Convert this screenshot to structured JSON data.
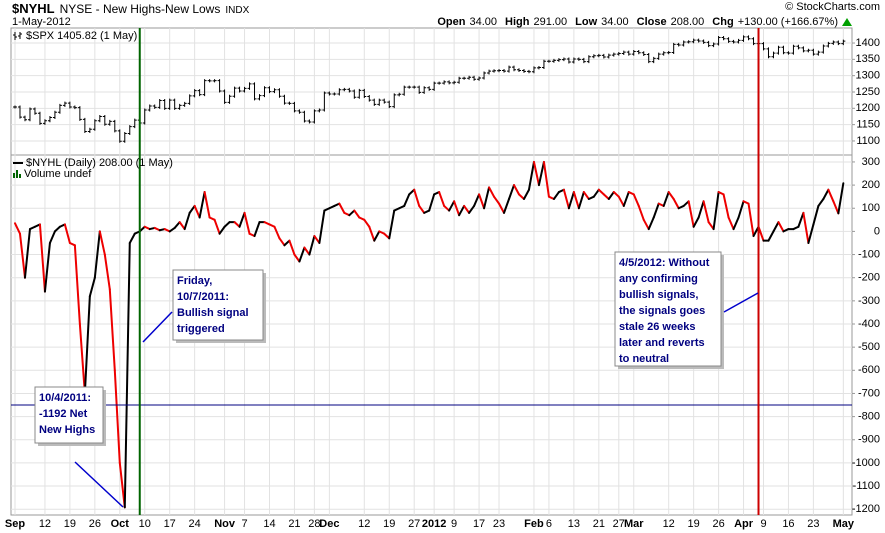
{
  "header": {
    "symbol": "$NYHL",
    "name": "NYSE - New Highs-New Lows",
    "exchange": "INDX",
    "date": "1-May-2012",
    "quote": [
      {
        "label": "Open",
        "value": "34.00"
      },
      {
        "label": "High",
        "value": "291.00"
      },
      {
        "label": "Low",
        "value": "34.00"
      },
      {
        "label": "Close",
        "value": "208.00"
      },
      {
        "label": "Chg",
        "value": "+130.00 (+166.67%)"
      }
    ],
    "credit": "© StockCharts.com"
  },
  "chart_data": [
    {
      "type": "price-bars",
      "series": [
        {
          "name": "$SPX 1405.82 (1 May)",
          "color": "#000000",
          "values": [
            1204,
            1173,
            1165,
            1198,
            1185,
            1154,
            1162,
            1172,
            1188,
            1209,
            1216,
            1204,
            1202,
            1166,
            1129,
            1136,
            1162,
            1175,
            1151,
            1160,
            1131,
            1099,
            1123,
            1144,
            1164,
            1155,
            1195,
            1207,
            1203,
            1224,
            1200,
            1225,
            1200,
            1209,
            1215,
            1238,
            1254,
            1242,
            1285,
            1284,
            1285,
            1253,
            1218,
            1237,
            1262,
            1253,
            1261,
            1275,
            1229,
            1239,
            1263,
            1251,
            1257,
            1237,
            1216,
            1215,
            1192,
            1188,
            1161,
            1158,
            1192,
            1195,
            1247,
            1244,
            1244,
            1257,
            1258,
            1253,
            1234,
            1255,
            1236,
            1225,
            1212,
            1225,
            1219,
            1205,
            1241,
            1243,
            1265,
            1265,
            1265,
            1249,
            1263,
            1258,
            1277,
            1277,
            1281,
            1278,
            1280,
            1292,
            1292,
            1295,
            1289,
            1293,
            1308,
            1314,
            1315,
            1316,
            1314,
            1326,
            1318,
            1316,
            1313,
            1312,
            1324,
            1325,
            1344,
            1344,
            1347,
            1349,
            1351,
            1342,
            1351,
            1350,
            1343,
            1358,
            1361,
            1362,
            1357,
            1363,
            1366,
            1368,
            1372,
            1366,
            1374,
            1370,
            1365,
            1343,
            1353,
            1366,
            1370,
            1371,
            1396,
            1394,
            1403,
            1404,
            1409,
            1406,
            1402,
            1392,
            1397,
            1417,
            1413,
            1405,
            1403,
            1408,
            1419,
            1413,
            1398,
            1398,
            1382,
            1358,
            1369,
            1387,
            1370,
            1369,
            1390,
            1385,
            1376,
            1378,
            1366,
            1372,
            1391,
            1399,
            1403,
            1398,
            1405.82
          ]
        }
      ],
      "ylim": [
        1057,
        1446
      ],
      "yticks": [
        1100,
        1150,
        1200,
        1250,
        1300,
        1350,
        1400
      ],
      "grid": true
    },
    {
      "type": "line",
      "categories": [
        "Sep",
        null,
        null,
        null,
        null,
        null,
        "12",
        null,
        null,
        null,
        null,
        "19",
        null,
        null,
        null,
        null,
        "26",
        null,
        null,
        null,
        null,
        "Oct",
        null,
        null,
        null,
        null,
        "10",
        null,
        null,
        null,
        null,
        "17",
        null,
        null,
        null,
        null,
        "24",
        null,
        null,
        null,
        null,
        null,
        "Nov",
        null,
        null,
        null,
        "7",
        null,
        null,
        null,
        null,
        "14",
        null,
        null,
        null,
        null,
        "21",
        null,
        null,
        null,
        "28",
        null,
        null,
        "Dec",
        null,
        null,
        null,
        null,
        null,
        null,
        "12",
        null,
        null,
        null,
        null,
        "19",
        null,
        null,
        null,
        null,
        "27",
        null,
        null,
        null,
        "2012",
        null,
        null,
        null,
        "9",
        null,
        null,
        null,
        null,
        "17",
        null,
        null,
        null,
        "23",
        null,
        null,
        null,
        null,
        null,
        null,
        "Feb",
        null,
        null,
        "6",
        null,
        null,
        null,
        null,
        "13",
        null,
        null,
        null,
        null,
        "21",
        null,
        null,
        null,
        "27",
        null,
        null,
        "Mar",
        null,
        null,
        null,
        null,
        null,
        null,
        "12",
        null,
        null,
        null,
        null,
        "19",
        null,
        null,
        null,
        null,
        "26",
        null,
        null,
        null,
        null,
        "Apr",
        null,
        null,
        null,
        "9",
        null,
        null,
        null,
        null,
        "16",
        null,
        null,
        null,
        null,
        "23",
        null,
        null,
        null,
        null,
        null,
        "May"
      ],
      "series": [
        {
          "name": "$NYHL (Daily) 208.00 (1 May)",
          "color": "#000000",
          "down_color": "#ee0000",
          "values": [
            35,
            -10,
            -200,
            10,
            20,
            30,
            -260,
            -50,
            0,
            20,
            30,
            -50,
            -60,
            -400,
            -700,
            -280,
            -200,
            0,
            -100,
            -250,
            -600,
            -1000,
            -1192,
            -50,
            -10,
            0,
            20,
            10,
            15,
            5,
            10,
            0,
            15,
            40,
            10,
            80,
            110,
            60,
            170,
            60,
            50,
            -10,
            20,
            40,
            40,
            20,
            80,
            -10,
            -20,
            40,
            40,
            30,
            20,
            -30,
            -60,
            -40,
            -100,
            -130,
            -70,
            -100,
            -20,
            -50,
            90,
            100,
            110,
            120,
            80,
            70,
            90,
            60,
            50,
            20,
            -40,
            0,
            -10,
            -30,
            90,
            100,
            110,
            160,
            180,
            110,
            80,
            90,
            160,
            170,
            110,
            90,
            130,
            70,
            110,
            80,
            110,
            160,
            100,
            190,
            150,
            120,
            80,
            140,
            200,
            160,
            140,
            180,
            300,
            200,
            300,
            150,
            140,
            170,
            180,
            100,
            170,
            100,
            170,
            140,
            150,
            180,
            160,
            140,
            170,
            150,
            110,
            170,
            160,
            110,
            50,
            10,
            60,
            120,
            110,
            170,
            140,
            100,
            110,
            130,
            20,
            60,
            130,
            40,
            10,
            170,
            160,
            60,
            10,
            60,
            130,
            120,
            -20,
            20,
            -40,
            -40,
            0,
            40,
            0,
            10,
            10,
            20,
            80,
            -50,
            30,
            110,
            140,
            180,
            130,
            78,
            208
          ]
        }
      ],
      "volume_label": "Volume undef",
      "ylim": [
        -1225,
        330
      ],
      "yticks": [
        300,
        200,
        100,
        0,
        -100,
        -200,
        -300,
        -400,
        -500,
        -600,
        -700,
        -800,
        -900,
        -1000,
        -1100,
        -1200
      ],
      "grid": true,
      "hlines": [
        {
          "value": -750,
          "color": "#000080"
        }
      ],
      "vlines": [
        {
          "index": 25,
          "color": "#006400"
        },
        {
          "index": 149,
          "color": "#cc0000"
        }
      ],
      "annotations": [
        {
          "lines": [
            "10/4/2011:",
            "-1192 Net",
            "New Highs"
          ]
        },
        {
          "lines": [
            "Friday,",
            "10/7/2011:",
            "Bullish signal",
            "triggered"
          ]
        },
        {
          "lines": [
            "4/5/2012: Without",
            "any confirming",
            "bullish signals,",
            "the signals goes",
            "stale 26 weeks",
            "later and reverts",
            "to neutral"
          ]
        }
      ]
    }
  ]
}
